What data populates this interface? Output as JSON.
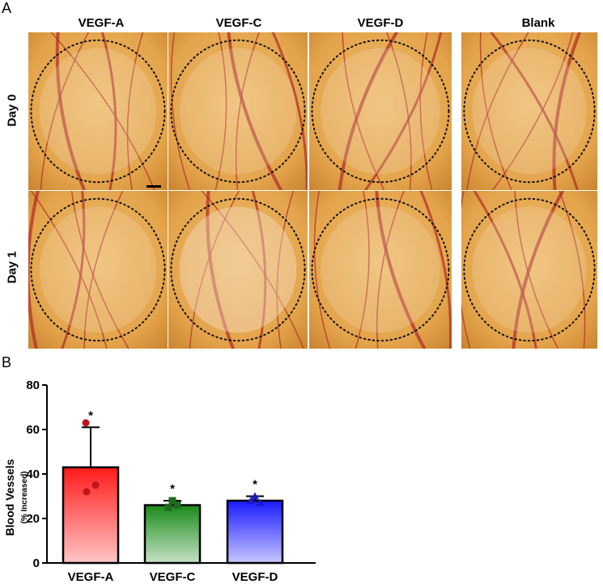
{
  "panel_a": {
    "letter": "A",
    "columns": [
      "VEGF-A",
      "VEGF-C",
      "VEGF-D",
      "Blank"
    ],
    "rows": [
      "Day 0",
      "Day 1"
    ]
  },
  "panel_b": {
    "letter": "B"
  },
  "colors": {
    "vegf_a": "#ff1a1a",
    "vegf_c": "#1a8a1a",
    "vegf_d": "#1a1aff",
    "egg_bg": "#e3a34a",
    "vessel": "#b0302a"
  },
  "chart_data": {
    "type": "bar",
    "categories": [
      "VEGF-A",
      "VEGF-C",
      "VEGF-D"
    ],
    "values": [
      43,
      26,
      28
    ],
    "error_upper": [
      18,
      2,
      2
    ],
    "points": [
      [
        63,
        35,
        32
      ],
      [
        28,
        26,
        25
      ],
      [
        30,
        27,
        28
      ]
    ],
    "significance": [
      "*",
      "*",
      "*"
    ],
    "ylabel": "Blood Vessels",
    "ylabel_sub": "(% Increased)",
    "ylim": [
      0,
      80
    ],
    "yticks": [
      0,
      20,
      40,
      60,
      80
    ]
  }
}
